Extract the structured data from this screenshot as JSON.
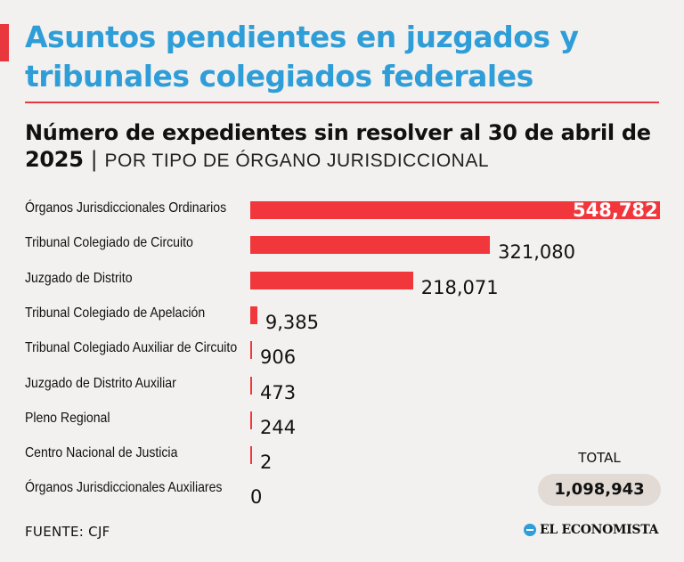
{
  "header": {
    "title": "Asuntos pendientes en juzgados y tribunales colegiados federales",
    "subtitle_main": "Número de expedientes sin resolver al 30 de abril de 2025",
    "subtitle_sep": "|",
    "subtitle_category": "POR TIPO DE ÓRGANO JURISDICCIONAL"
  },
  "colors": {
    "title": "#2f9ed8",
    "accent": "#e8383d",
    "bar": "#f2373c",
    "background": "#f3f1ef"
  },
  "chart_data": {
    "type": "bar",
    "orientation": "horizontal",
    "title": "Número de expedientes sin resolver al 30 de abril de 2025",
    "categories": [
      "Órganos Jurisdiccionales Ordinarios",
      "Tribunal Colegiado de Circuito",
      "Juzgado de Distrito",
      "Tribunal Colegiado de Apelación",
      "Tribunal Colegiado Auxiliar de Circuito",
      "Juzgado de Distrito Auxiliar",
      "Pleno Regional",
      "Centro Nacional de Justicia",
      "Órganos Jurisdiccionales Auxiliares"
    ],
    "values": [
      548782,
      321080,
      218071,
      9385,
      906,
      473,
      244,
      2,
      0
    ],
    "value_labels": [
      "548,782",
      "321,080",
      "218,071",
      "9,385",
      "906",
      "473",
      "244",
      "2",
      "0"
    ],
    "xlim": [
      0,
      548782
    ]
  },
  "total": {
    "label": "TOTAL",
    "value": "1,098,943"
  },
  "footer": {
    "source": "FUENTE: CJF",
    "brand": "EL ECONOMISTA"
  }
}
